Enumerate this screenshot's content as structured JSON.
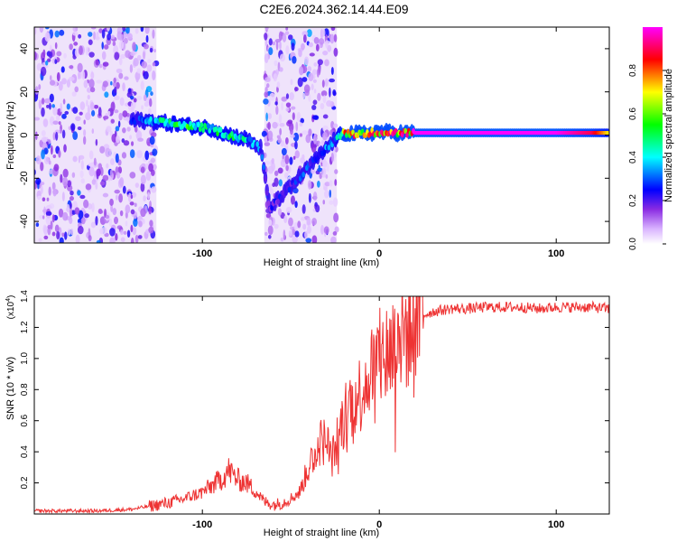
{
  "title": "C2E6.2024.362.14.44.E09",
  "chart_data": [
    {
      "type": "heatmap",
      "xlabel": "Height of straight line (km)",
      "ylabel": "Frequency (Hz)",
      "xlim": [
        -195,
        130
      ],
      "ylim": [
        -50,
        50
      ],
      "xticks": [
        -100,
        0,
        100
      ],
      "yticks": [
        -40,
        -20,
        0,
        20,
        40
      ],
      "colorbar": {
        "label": "Normalized spectral amplitude",
        "range": [
          0,
          1
        ],
        "ticks": [
          "0.0",
          "0.2",
          "0.4",
          "0.6",
          "0.8"
        ],
        "colors": [
          "#ffffff",
          "#8a2be2",
          "#0000ff",
          "#00ffff",
          "#00ff00",
          "#ffff00",
          "#ff0000",
          "#ff00ff"
        ]
      },
      "noise_regions": [
        {
          "x": [
            -195,
            -126
          ],
          "y": [
            -50,
            50
          ],
          "level": 0.2
        },
        {
          "x": [
            -65,
            -24
          ],
          "y": [
            -50,
            50
          ],
          "level": 0.2
        }
      ],
      "ridge": {
        "x": [
          -140,
          -125,
          -115,
          -105,
          -95,
          -85,
          -75,
          -67,
          -62,
          -25,
          -20,
          -10,
          0,
          10,
          20,
          40,
          60,
          80,
          100,
          120,
          130
        ],
        "freq": [
          7,
          6,
          5,
          4,
          3,
          0,
          -2,
          -6,
          -34,
          -2,
          1,
          0.5,
          1.5,
          1,
          1,
          1,
          1,
          1,
          1,
          1,
          1
        ],
        "amplitude": [
          0.3,
          0.5,
          0.6,
          0.6,
          0.55,
          0.6,
          0.5,
          0.35,
          0.25,
          0.4,
          0.9,
          0.95,
          0.95,
          0.95,
          1,
          1,
          1,
          1,
          1,
          0.9,
          0.7
        ]
      }
    },
    {
      "type": "line",
      "xlabel": "Height of straight line (km)",
      "ylabel": "SNR (10 * v/v)",
      "scale_label": "(x10",
      "scale_exp": "4",
      "xlim": [
        -195,
        130
      ],
      "ylim": [
        0,
        1.4
      ],
      "xticks": [
        -100,
        0,
        100
      ],
      "yticks": [
        0.2,
        0.4,
        0.6,
        0.8,
        1.0,
        1.2,
        1.4
      ],
      "color": "#ee3333",
      "series": [
        {
          "x": [
            -195,
            -180,
            -160,
            -140,
            -130,
            -120,
            -110,
            -100,
            -90,
            -85,
            -80,
            -75,
            -70,
            -65,
            -60,
            -55,
            -50,
            -45,
            -40,
            -35,
            -30,
            -27,
            -25,
            -22,
            -20,
            -17,
            -15,
            -12,
            -10,
            -7,
            -5,
            -2,
            0,
            5,
            10,
            15,
            20,
            25,
            30,
            40,
            50,
            60,
            70,
            80,
            90,
            100,
            110,
            120,
            130
          ],
          "values": [
            0.02,
            0.02,
            0.02,
            0.03,
            0.05,
            0.07,
            0.1,
            0.14,
            0.22,
            0.28,
            0.22,
            0.2,
            0.15,
            0.08,
            0.06,
            0.07,
            0.1,
            0.14,
            0.3,
            0.45,
            0.48,
            0.35,
            0.42,
            0.55,
            0.62,
            0.7,
            0.75,
            0.75,
            0.8,
            0.9,
            0.92,
            0.95,
            0.98,
            1.05,
            1.12,
            1.18,
            1.25,
            1.28,
            1.3,
            1.32,
            1.32,
            1.33,
            1.33,
            1.33,
            1.32,
            1.33,
            1.33,
            1.33,
            1.32
          ]
        }
      ]
    }
  ]
}
